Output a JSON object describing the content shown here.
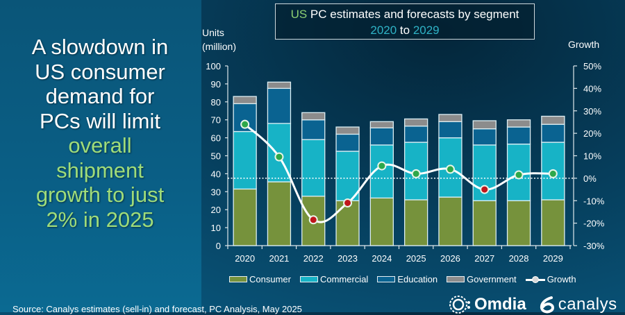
{
  "headline": {
    "white_lines": [
      "A slowdown in",
      "US consumer",
      "demand for",
      "PCs will limit"
    ],
    "green_lines": [
      "overall",
      "shipment",
      "growth to just",
      "2% in 2025"
    ]
  },
  "title": {
    "part1": "US",
    "part2": " PC estimates and forecasts by segment",
    "year_from": "2020",
    "to": " to ",
    "year_to": "2029"
  },
  "axis_labels": {
    "left_line1": "Units",
    "left_line2": "(million)",
    "right": "Growth"
  },
  "source": "Source: Canalys estimates (sell-in) and forecast, PC Analysis, May 2025",
  "logos": {
    "omdia": "Omdia",
    "canalys": "canalys"
  },
  "colors": {
    "consumer": "#76923c",
    "commercial": "#17b3c6",
    "education": "#0a6391",
    "government": "#8c8c8c",
    "growth_line": "#ffffff",
    "growth_positive": "#2ea84a",
    "growth_negative": "#c0161c"
  },
  "chart_data": {
    "type": "bar",
    "stacked": true,
    "title": "US PC estimates and forecasts by segment 2020 to 2029",
    "xlabel": "",
    "ylabel": "Units (million)",
    "y2label": "Growth",
    "categories": [
      "2020",
      "2021",
      "2022",
      "2023",
      "2024",
      "2025",
      "2026",
      "2027",
      "2028",
      "2029"
    ],
    "ylim": [
      0,
      100
    ],
    "yticks": [
      0,
      10,
      20,
      30,
      40,
      50,
      60,
      70,
      80,
      90,
      100
    ],
    "y2lim": [
      -30,
      50
    ],
    "y2ticks": [
      "-30%",
      "-20%",
      "-10%",
      "0%",
      "10%",
      "20%",
      "30%",
      "40%",
      "50%"
    ],
    "y2tick_values": [
      -30,
      -20,
      -10,
      0,
      10,
      20,
      30,
      40,
      50
    ],
    "series": [
      {
        "name": "Consumer",
        "values": [
          31.5,
          35.5,
          27.5,
          25.0,
          26.5,
          25.5,
          27.0,
          25.0,
          25.0,
          25.5
        ]
      },
      {
        "name": "Commercial",
        "values": [
          32.0,
          32.5,
          31.5,
          27.5,
          29.5,
          32.0,
          33.0,
          31.0,
          31.5,
          32.0
        ]
      },
      {
        "name": "Education",
        "values": [
          15.5,
          19.5,
          11.0,
          9.5,
          9.5,
          9.0,
          9.0,
          9.0,
          9.5,
          10.0
        ]
      },
      {
        "name": "Government",
        "values": [
          4.0,
          3.5,
          4.0,
          4.0,
          3.5,
          4.0,
          4.0,
          4.5,
          4.0,
          4.5
        ]
      }
    ],
    "line_series": {
      "name": "Growth",
      "axis": "right",
      "unit": "%",
      "values": [
        24.0,
        9.5,
        -18.5,
        -11.0,
        5.5,
        2.0,
        4.0,
        -5.0,
        1.5,
        2.0
      ]
    },
    "legend": [
      "Consumer",
      "Commercial",
      "Education",
      "Government",
      "Growth"
    ],
    "legend_position": "bottom",
    "zero_growth_reference_line": "dotted",
    "grid": false
  }
}
